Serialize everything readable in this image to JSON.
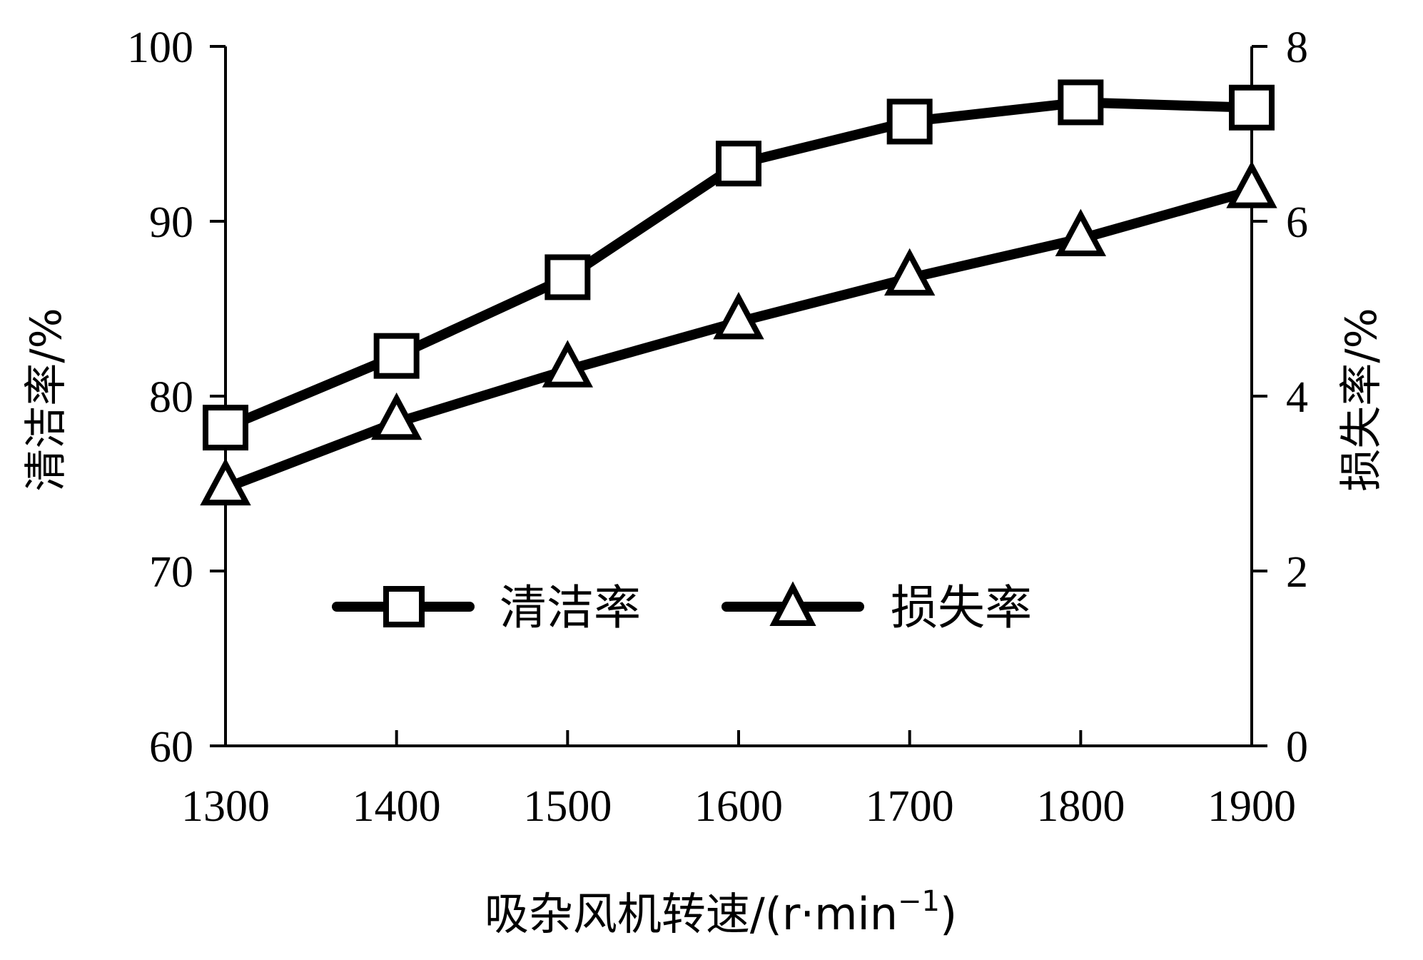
{
  "chart_data": {
    "type": "line",
    "x": [
      1300,
      1400,
      1500,
      1600,
      1700,
      1800,
      1900
    ],
    "xlim": [
      1300,
      1900
    ],
    "xlabel_main": "吸杂风机转速/(r·min",
    "xlabel_sup": "−1",
    "xlabel_end": ")",
    "ylabel_left": "清洁率/%",
    "ylabel_right": "损失率/%",
    "ylim_left": [
      60,
      100
    ],
    "ylim_right": [
      0,
      8
    ],
    "yticks_left": [
      60,
      70,
      80,
      90,
      100
    ],
    "yticks_right": [
      0,
      2,
      4,
      6,
      8
    ],
    "series": [
      {
        "name": "清洁率",
        "axis": "left",
        "marker": "square",
        "values": [
          78.2,
          82.3,
          86.8,
          93.3,
          95.7,
          96.8,
          96.5
        ]
      },
      {
        "name": "损失率",
        "axis": "right",
        "marker": "triangle",
        "values": [
          2.95,
          3.7,
          4.3,
          4.85,
          5.35,
          5.8,
          6.35
        ]
      }
    ],
    "legend_position": "bottom-center",
    "grid": false
  }
}
